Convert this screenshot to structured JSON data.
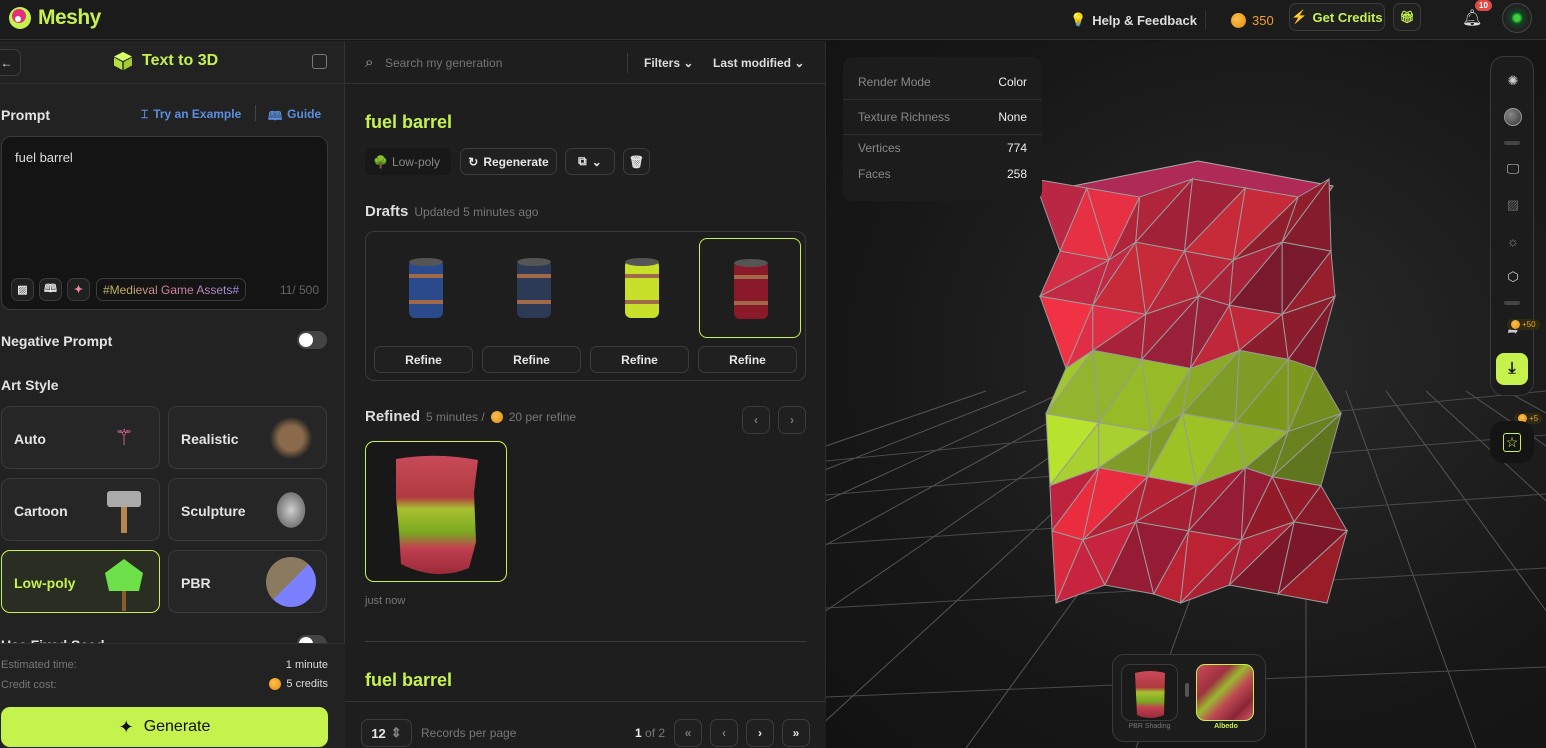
{
  "topbar": {
    "brand": "Meshy",
    "help": "Help & Feedback",
    "credits": "350",
    "get_credits": "Get Credits",
    "notifications": "10"
  },
  "left": {
    "title": "Text to 3D",
    "prompt_label": "Prompt",
    "try_example": "Try an Example",
    "guide": "Guide",
    "prompt_value": "fuel barrel",
    "tag": "#Medieval Game Assets#",
    "char_count": "11/ 500",
    "negative_prompt": "Negative Prompt",
    "negative_enabled": false,
    "art_style": "Art Style",
    "styles": [
      {
        "label": "Auto"
      },
      {
        "label": "Realistic"
      },
      {
        "label": "Cartoon"
      },
      {
        "label": "Sculpture"
      },
      {
        "label": "Low-poly",
        "selected": true
      },
      {
        "label": "PBR"
      }
    ],
    "fixed_seed": "Use Fixed Seed",
    "estimated_time_label": "Estimated time:",
    "estimated_time": "1 minute",
    "credit_cost_label": "Credit cost:",
    "credit_cost": "5 credits",
    "generate": "Generate"
  },
  "mid": {
    "search_placeholder": "Search my generation",
    "filters": "Filters",
    "sort": "Last modified",
    "title": "fuel barrel",
    "style_badge": "Low-poly",
    "regenerate": "Regenerate",
    "drafts_label": "Drafts",
    "drafts_updated": "Updated 5 minutes ago",
    "drafts": [
      {
        "refine": "Refine",
        "color": "#2a4a8c"
      },
      {
        "refine": "Refine",
        "color": "#2d3a55"
      },
      {
        "refine": "Refine",
        "color": "#c9e02a"
      },
      {
        "refine": "Refine",
        "color": "#8a1a2a",
        "selected": true
      }
    ],
    "refined_label": "Refined",
    "refined_time": "5 minutes /",
    "refined_cost": "20 per refine",
    "refined_caption": "just now",
    "next_title": "fuel barrel",
    "per_page": "12",
    "records_per_page": "Records per page",
    "page_current": "1",
    "page_of": "of 2"
  },
  "viewer": {
    "info": [
      {
        "k": "Render Mode",
        "v": "Color"
      },
      {
        "k": "Texture Richness",
        "v": "None"
      },
      {
        "k": "Vertices",
        "v": "774"
      },
      {
        "k": "Faces",
        "v": "258"
      }
    ],
    "share_bonus": "+50",
    "feedback_bonus": "+5",
    "modes": [
      {
        "label": "PBR Shading"
      },
      {
        "label": "Albedo",
        "selected": true
      }
    ]
  },
  "colors": {
    "accent": "#c6f24e",
    "link": "#5b8fe0",
    "credit": "#f0a020"
  }
}
